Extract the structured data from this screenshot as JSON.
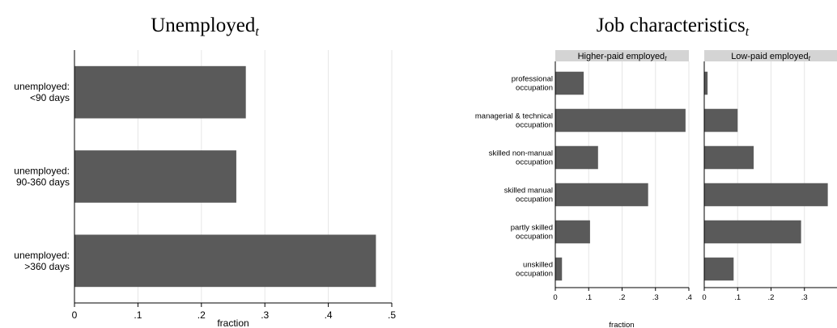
{
  "chart_data": [
    {
      "type": "bar",
      "orientation": "horizontal",
      "title": "Unemployed",
      "title_subscript": "t",
      "categories": [
        [
          "unemployed:",
          "<90 days"
        ],
        [
          "unemployed:",
          "90-360 days"
        ],
        [
          "unemployed:",
          ">360 days"
        ]
      ],
      "values": [
        0.27,
        0.255,
        0.475
      ],
      "xlabel": "fraction",
      "xlim": [
        0,
        0.5
      ],
      "xticks": [
        0,
        0.1,
        0.2,
        0.3,
        0.4,
        0.5
      ],
      "xtick_labels": [
        "0",
        ".1",
        ".2",
        ".3",
        ".4",
        ".5"
      ],
      "grid": "vertical",
      "bar_color": "#5a5a5a"
    },
    {
      "type": "bar",
      "orientation": "horizontal",
      "title": "Job characteristics",
      "title_subscript": "t",
      "categories": [
        [
          "professional",
          "occupation"
        ],
        [
          "managerial & technical",
          "occupation"
        ],
        [
          "skilled non-manual",
          "occupation"
        ],
        [
          "skilled manual",
          "occupation"
        ],
        [
          "partly skilled",
          "occupation"
        ],
        [
          "unskilled",
          "occupation"
        ]
      ],
      "panels": [
        {
          "name": "Higher-paid employed",
          "name_subscript": "t",
          "values": [
            0.085,
            0.39,
            0.128,
            0.278,
            0.104,
            0.02
          ]
        },
        {
          "name": "Low-paid employed",
          "name_subscript": "t",
          "values": [
            0.01,
            0.1,
            0.148,
            0.37,
            0.29,
            0.088
          ]
        }
      ],
      "xlabel": "fraction",
      "xlim": [
        0,
        0.4
      ],
      "xticks": [
        0,
        0.1,
        0.2,
        0.3,
        0.4
      ],
      "xtick_labels": [
        "0",
        ".1",
        ".2",
        ".3",
        ".4"
      ],
      "grid": "vertical",
      "bar_color": "#5a5a5a",
      "strip_color": "#d4d4d4"
    }
  ]
}
